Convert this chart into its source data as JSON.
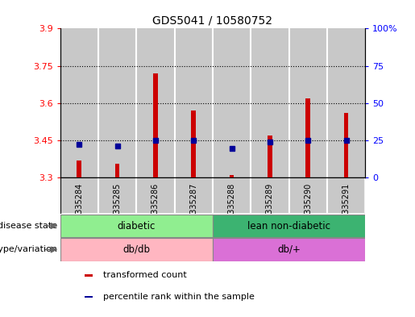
{
  "title": "GDS5041 / 10580752",
  "samples": [
    "GSM1335284",
    "GSM1335285",
    "GSM1335286",
    "GSM1335287",
    "GSM1335288",
    "GSM1335289",
    "GSM1335290",
    "GSM1335291"
  ],
  "bar_bottoms": [
    3.3,
    3.3,
    3.3,
    3.3,
    3.3,
    3.3,
    3.3,
    3.3
  ],
  "bar_tops": [
    3.37,
    3.355,
    3.72,
    3.57,
    3.31,
    3.47,
    3.62,
    3.56
  ],
  "blue_y": [
    3.432,
    3.428,
    3.45,
    3.45,
    3.418,
    3.442,
    3.45,
    3.45
  ],
  "ylim_left": [
    3.3,
    3.9
  ],
  "ylim_right": [
    0,
    100
  ],
  "yticks_left": [
    3.3,
    3.45,
    3.6,
    3.75,
    3.9
  ],
  "yticks_right": [
    0,
    25,
    50,
    75,
    100
  ],
  "ytick_labels_left": [
    "3.3",
    "3.45",
    "3.6",
    "3.75",
    "3.9"
  ],
  "ytick_labels_right": [
    "0",
    "25",
    "50",
    "75",
    "100%"
  ],
  "hlines": [
    3.45,
    3.6,
    3.75
  ],
  "disease_state_groups": [
    {
      "label": "diabetic",
      "start": 0,
      "end": 4,
      "color": "#90EE90"
    },
    {
      "label": "lean non-diabetic",
      "start": 4,
      "end": 8,
      "color": "#3CB371"
    }
  ],
  "genotype_groups": [
    {
      "label": "db/db",
      "start": 0,
      "end": 4,
      "color": "#FFB6C1"
    },
    {
      "label": "db/+",
      "start": 4,
      "end": 8,
      "color": "#DA70D6"
    }
  ],
  "bar_color": "#CC0000",
  "blue_color": "#000099",
  "bg_color": "#C8C8C8",
  "plot_bg": "#FFFFFF",
  "label_disease": "disease state",
  "label_genotype": "genotype/variation",
  "legend_items": [
    {
      "label": "transformed count",
      "color": "#CC0000"
    },
    {
      "label": "percentile rank within the sample",
      "color": "#000099"
    }
  ],
  "fig_width": 5.15,
  "fig_height": 3.93,
  "dpi": 100
}
